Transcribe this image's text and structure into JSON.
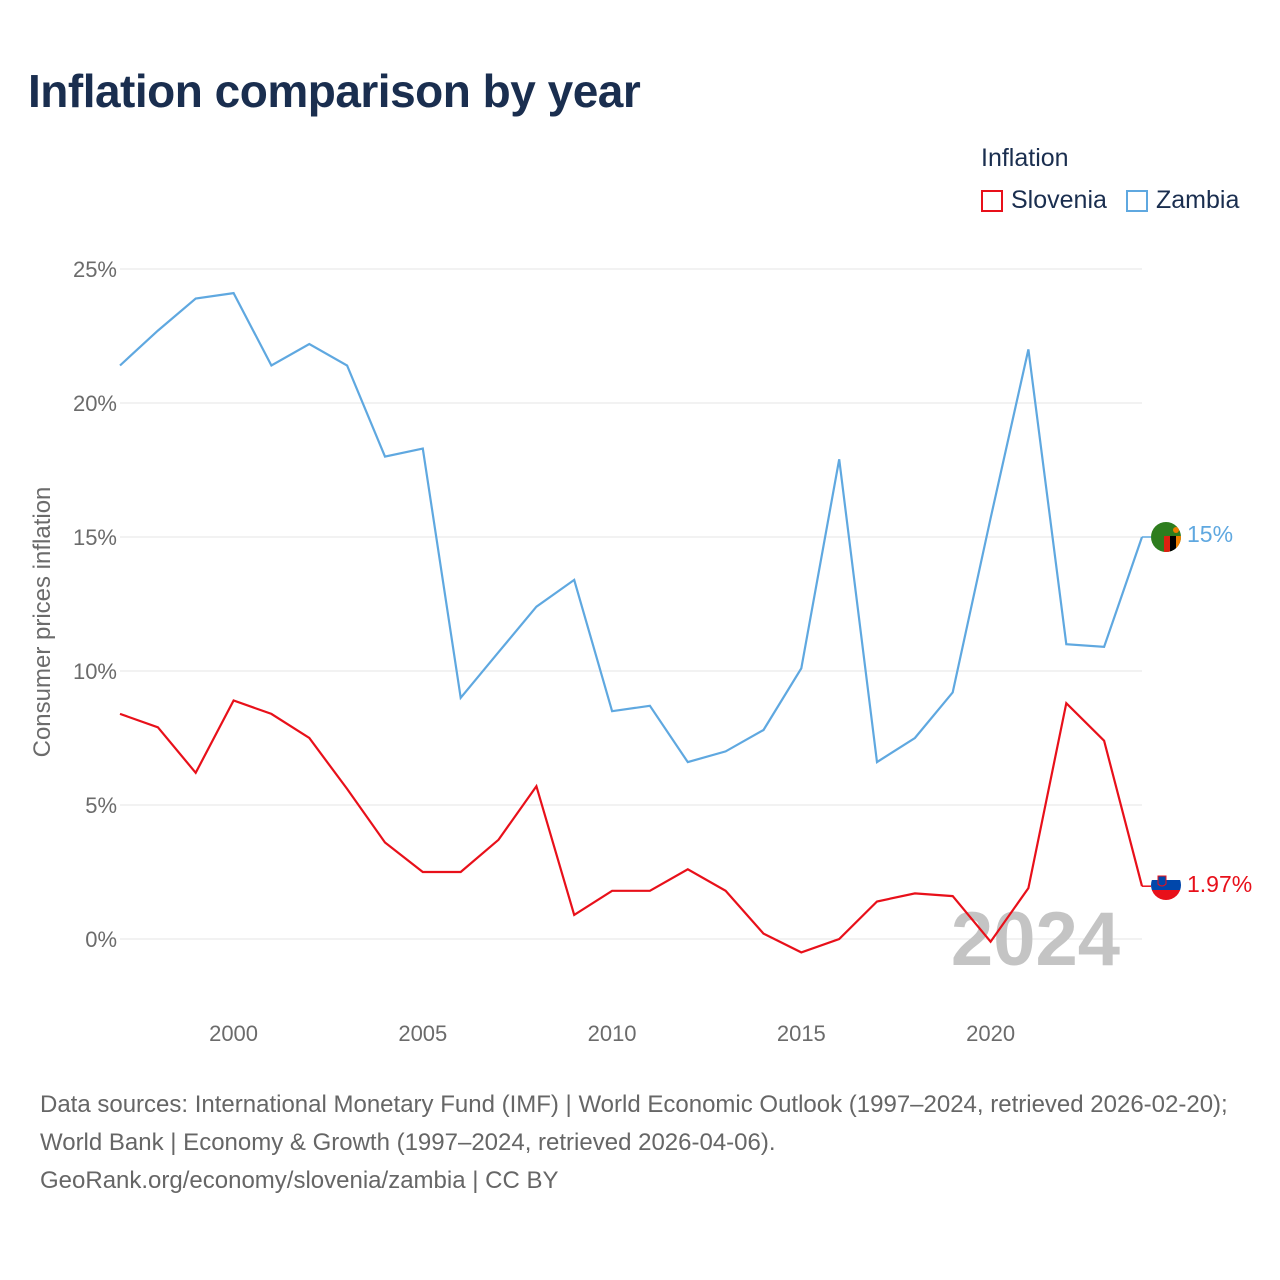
{
  "title": "Inflation comparison by year",
  "legend": {
    "title": "Inflation",
    "items": [
      {
        "label": "Slovenia",
        "color": "#e8101a"
      },
      {
        "label": "Zambia",
        "color": "#5fa8e0"
      }
    ]
  },
  "watermark_year": "2024",
  "end_labels": {
    "zambia": "15%",
    "slovenia": "1.97%"
  },
  "footer": {
    "line1": "Data sources: International Monetary Fund (IMF) | World Economic Outlook (1997–2024, retrieved 2026-02-20); World Bank | Economy & Growth (1997–2024, retrieved 2026-04-06).",
    "line2": "GeoRank.org/economy/slovenia/zambia | CC BY"
  },
  "chart_data": {
    "type": "line",
    "title": "Inflation comparison by year",
    "xlabel": "",
    "ylabel": "Consumer prices inflation",
    "xlim": [
      1997,
      2024
    ],
    "ylim": [
      -2.5,
      25
    ],
    "y_ticks": [
      0,
      5,
      10,
      15,
      20,
      25
    ],
    "y_tick_labels": [
      "0%",
      "5%",
      "10%",
      "15%",
      "20%",
      "25%"
    ],
    "x_ticks": [
      2000,
      2005,
      2010,
      2015,
      2020
    ],
    "x_tick_labels": [
      "2000",
      "2005",
      "2010",
      "2015",
      "2020"
    ],
    "x": [
      1997,
      1998,
      1999,
      2000,
      2001,
      2002,
      2003,
      2004,
      2005,
      2006,
      2007,
      2008,
      2009,
      2010,
      2011,
      2012,
      2013,
      2014,
      2015,
      2016,
      2017,
      2018,
      2019,
      2020,
      2021,
      2022,
      2023,
      2024
    ],
    "series": [
      {
        "name": "Zambia",
        "color": "#5fa8e0",
        "values": [
          21.4,
          22.7,
          23.9,
          24.1,
          21.4,
          22.2,
          21.4,
          18.0,
          18.3,
          9.0,
          10.7,
          12.4,
          13.4,
          8.5,
          8.7,
          6.6,
          7.0,
          7.8,
          10.1,
          17.9,
          6.6,
          7.5,
          9.2,
          15.7,
          22.0,
          11.0,
          10.9,
          15.0
        ]
      },
      {
        "name": "Slovenia",
        "color": "#e8101a",
        "values": [
          8.4,
          7.9,
          6.2,
          8.9,
          8.4,
          7.5,
          5.6,
          3.6,
          2.5,
          2.5,
          3.7,
          5.7,
          0.9,
          1.8,
          1.8,
          2.6,
          1.8,
          0.2,
          -0.5,
          0.0,
          1.4,
          1.7,
          1.6,
          -0.1,
          1.9,
          8.8,
          7.4,
          1.97
        ]
      }
    ],
    "legend_position": "top-right",
    "grid": true
  }
}
